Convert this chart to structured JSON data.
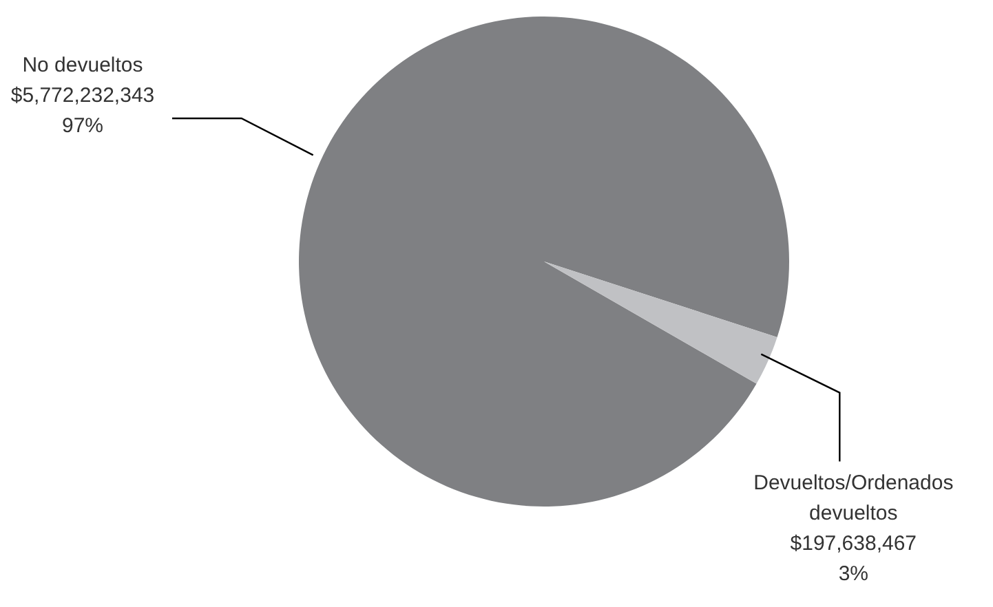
{
  "chart_data": {
    "type": "pie",
    "categories": [
      "No devueltos",
      "Devueltos/Ordenados devueltos"
    ],
    "values": [
      5772232343,
      197638467
    ],
    "colors": [
      "#7f8083",
      "#c0c1c4"
    ],
    "value_labels": [
      "$5,772,232,343\n97%",
      "$197,638,467\n3%"
    ],
    "legend": false
  }
}
